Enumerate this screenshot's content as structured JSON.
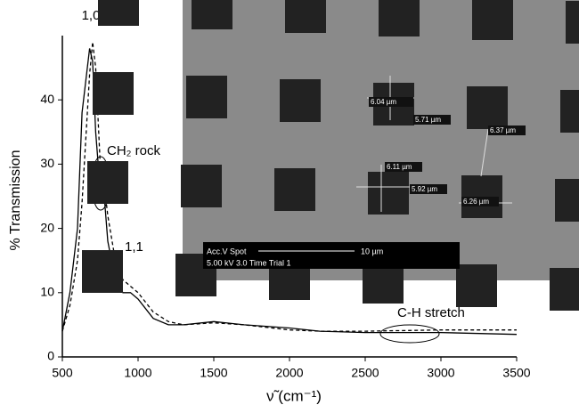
{
  "chart_data": {
    "type": "line",
    "x": [
      500,
      550,
      600,
      630,
      660,
      680,
      700,
      720,
      750,
      780,
      800,
      850,
      900,
      950,
      1000,
      1100,
      1200,
      1300,
      1500,
      1700,
      2000,
      2200,
      2500,
      3000,
      3500
    ],
    "series": [
      {
        "color": "#000000",
        "dash": false,
        "values": [
          4,
          10,
          20,
          38,
          44,
          48,
          46,
          35,
          26,
          24,
          18,
          12,
          10,
          10,
          9,
          6,
          5,
          5,
          5.5,
          5,
          4.5,
          4,
          3.8,
          3.8,
          3.5
        ]
      },
      {
        "color": "#000000",
        "dash": true,
        "values": [
          4,
          8,
          15,
          24,
          36,
          44,
          49,
          45,
          30,
          26,
          22,
          15,
          12,
          11,
          10,
          7,
          5.5,
          5,
          5.3,
          5,
          4.2,
          4,
          4,
          4.2,
          4.2
        ]
      }
    ],
    "xlim": [
      500,
      3500
    ],
    "xticks": [
      500,
      1000,
      1500,
      2000,
      2500,
      3000,
      3500
    ],
    "ylim": [
      0,
      50
    ],
    "yticks": [
      0,
      10,
      20,
      30,
      40
    ],
    "xlabel": "ν̃ (cm⁻¹)",
    "ylabel": "% Transmission",
    "annotations": [
      "1,0",
      "CH₂ rock",
      "1,1",
      "C-H stretch"
    ]
  },
  "inset": {
    "measurements": [
      "6.04 µm",
      "5.71 µm",
      "6.37 µm",
      "6.11 µm",
      "5.92 µm",
      "6.26 µm"
    ],
    "databar": [
      "Acc.V  Spot",
      "10 µm",
      "5.00 kV 3.0   Time Trial 1"
    ]
  }
}
